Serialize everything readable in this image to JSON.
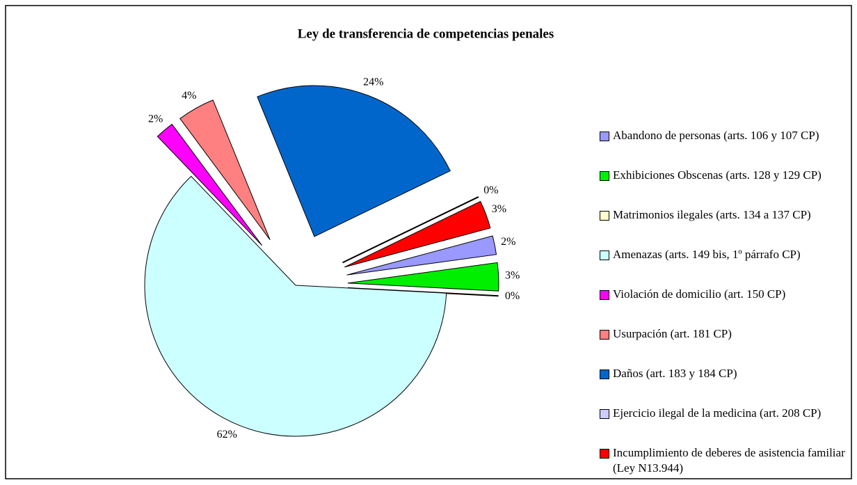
{
  "chart_data": {
    "type": "pie",
    "title": "Ley de transferencia de competencias penales",
    "categories": [
      "Abandono de personas (arts. 106 y 107 CP)",
      "Exhibiciones Obscenas (arts. 128 y 129 CP)",
      "Matrimonios ilegales (arts. 134 a 137 CP)",
      "Amenazas (arts. 149 bis, 1º párrafo CP)",
      "Violación de domicilio (art. 150 CP)",
      "Usurpación (art. 181 CP)",
      "Daños (art. 183 y 184 CP)",
      "Ejercicio ilegal de la medicina (art. 208 CP)",
      "Incumplimiento de deberes de asistencia familiar (Ley N13.944)"
    ],
    "values": [
      2,
      3,
      0,
      62,
      2,
      4,
      24,
      0,
      3
    ],
    "value_labels": [
      "2%",
      "3%",
      "0%",
      "62%",
      "2%",
      "4%",
      "24%",
      "0%",
      "3%"
    ],
    "colors": [
      "#9999ff",
      "#00ee00",
      "#ffffcc",
      "#ccffff",
      "#ff00ff",
      "#ff8080",
      "#0066cc",
      "#ccccff",
      "#ff0000"
    ],
    "legend": "right"
  }
}
